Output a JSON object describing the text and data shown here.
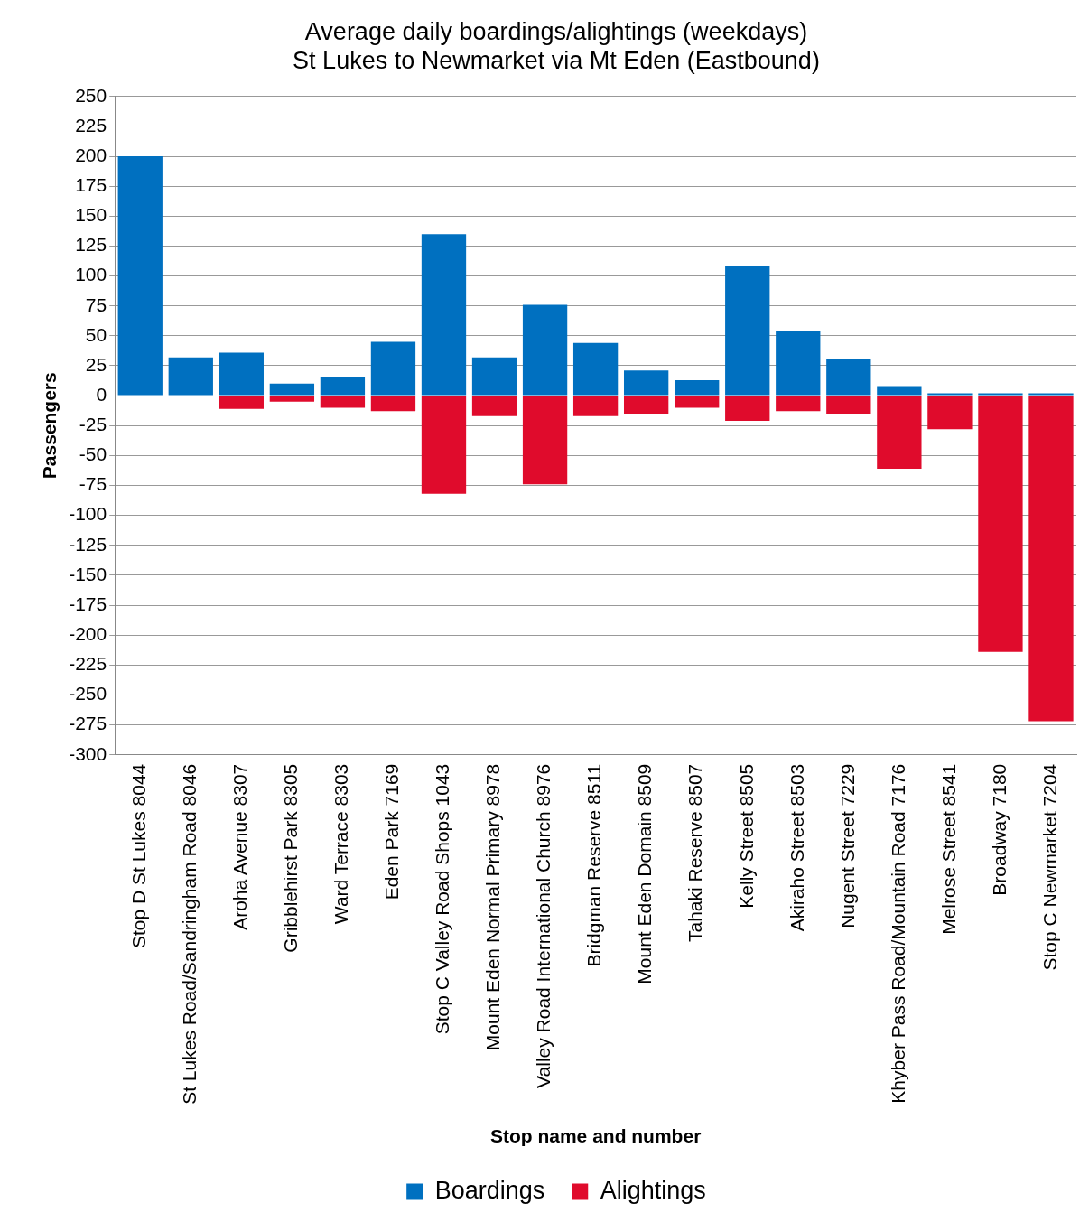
{
  "chart_data": {
    "type": "bar",
    "title": "Average daily boardings/alightings (weekdays)",
    "subtitle": "St Lukes to Newmarket via Mt Eden (Eastbound)",
    "xlabel": "Stop name and number",
    "ylabel": "Passengers",
    "categories": [
      "Stop D St Lukes 8044",
      "St Lukes Road/Sandringham Road 8046",
      "Aroha Avenue 8307",
      "Gribblehirst Park 8305",
      "Ward Terrace 8303",
      "Eden Park 7169",
      "Stop C Valley Road Shops 1043",
      "Mount Eden Normal Primary 8978",
      "Valley Road International Church 8976",
      "Bridgman Reserve 8511",
      "Mount Eden Domain 8509",
      "Tahaki Reserve 8507",
      "Kelly Street 8505",
      "Akiraho Street 8503",
      "Nugent Street 7229",
      "Khyber Pass Road/Mountain Road 7176",
      "Melrose Street 8541",
      "Broadway 7180",
      "Stop C Newmarket 7204"
    ],
    "series": [
      {
        "name": "Boardings",
        "color": "#0070c0",
        "values": [
          200,
          32,
          36,
          10,
          16,
          45,
          135,
          32,
          76,
          44,
          21,
          13,
          108,
          54,
          31,
          8,
          2,
          2,
          2
        ]
      },
      {
        "name": "Alightings",
        "color": "#e00b2c",
        "values": [
          0,
          null,
          -11,
          -5,
          -10,
          -13,
          -82,
          -17,
          -74,
          -17,
          -15,
          -10,
          -21,
          -13,
          -15,
          -61,
          -28,
          -214,
          -272
        ]
      }
    ],
    "stacked": true,
    "ylim": [
      -300,
      250
    ],
    "yticks": [
      -300,
      -275,
      -250,
      -225,
      -200,
      -175,
      -150,
      -125,
      -100,
      -75,
      -50,
      -25,
      0,
      25,
      50,
      75,
      100,
      125,
      150,
      175,
      200,
      225,
      250
    ],
    "grid": "y",
    "legend": "bottom"
  }
}
